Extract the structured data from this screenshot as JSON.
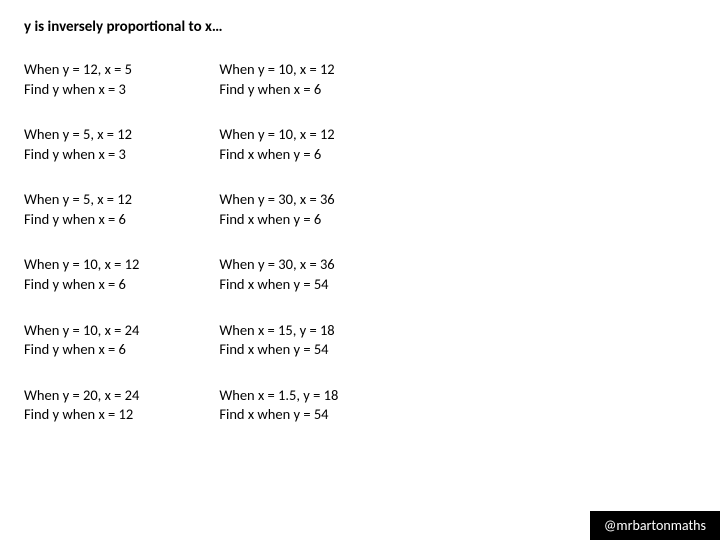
{
  "title": "y is inversely proportional to x…",
  "left": [
    {
      "line1": "When y = 12, x = 5",
      "line2": "Find y when x = 3"
    },
    {
      "line1": "When y = 5, x = 12",
      "line2": "Find y when x = 3"
    },
    {
      "line1": "When y = 5, x = 12",
      "line2": "Find y when x = 6"
    },
    {
      "line1": "When y = 10, x = 12",
      "line2": "Find y when x = 6"
    },
    {
      "line1": "When y = 10, x = 24",
      "line2": "Find y when x = 6"
    },
    {
      "line1": "When y = 20, x = 24",
      "line2": "Find y when x = 12"
    }
  ],
  "right": [
    {
      "line1": "When y = 10, x = 12",
      "line2": "Find y when x = 6"
    },
    {
      "line1": "When y = 10, x = 12",
      "line2": "Find x when y = 6"
    },
    {
      "line1": "When y = 30, x = 36",
      "line2": "Find x when y = 6"
    },
    {
      "line1": "When y = 30, x = 36",
      "line2": "Find x when y = 54"
    },
    {
      "line1": "When x = 15, y = 18",
      "line2": "Find x when y = 54"
    },
    {
      "line1": "When x = 1.5, y = 18",
      "line2": "Find x when y = 54"
    }
  ],
  "footer": "@mrbartonmaths"
}
